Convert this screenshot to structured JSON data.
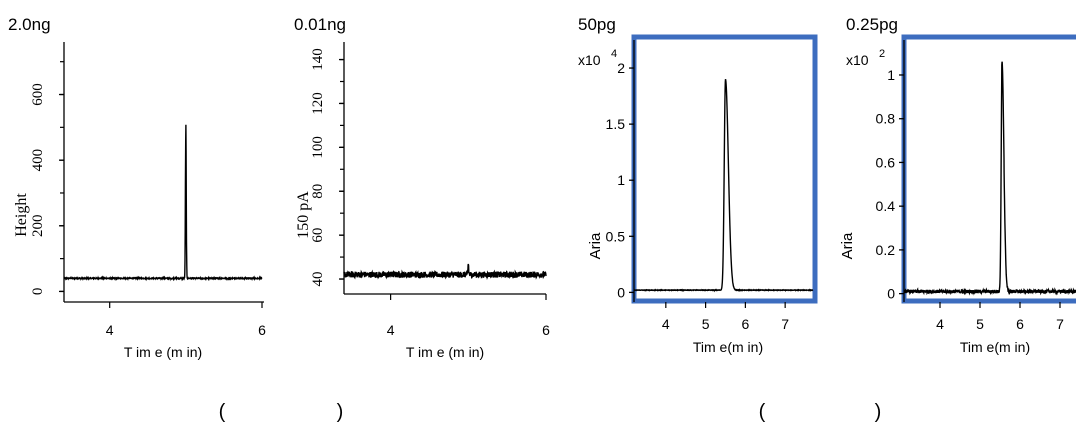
{
  "colors": {
    "line": "#000000",
    "frame": "#3d6dbf",
    "background": "#ffffff"
  },
  "captions": [
    "(",
    ")",
    "(",
    ")"
  ],
  "chart_data": [
    {
      "type": "line",
      "title": "2.0ng",
      "xlabel": "T im e (m in)",
      "ylabel": "Height",
      "xlim": [
        3.4,
        6.0
      ],
      "ylim": [
        -20,
        760
      ],
      "x_ticks": [
        4,
        6
      ],
      "y_ticks": [
        0,
        200,
        400,
        600
      ],
      "y_tick_labels": [
        "0",
        "200",
        "400",
        "600"
      ],
      "baseline": 40,
      "noise": 1.5,
      "peaks": [
        {
          "x": 5.0,
          "height": 508,
          "width": 0.012,
          "tail": 0.0
        }
      ]
    },
    {
      "type": "line",
      "title": "0.01ng",
      "xlabel": "T im e (m in)",
      "ylabel": "150 pA",
      "xlim": [
        3.4,
        6.0
      ],
      "ylim": [
        35,
        148
      ],
      "x_ticks": [
        4,
        6
      ],
      "y_ticks": [
        40,
        60,
        80,
        100,
        120,
        140
      ],
      "y_tick_labels": [
        "40",
        "60",
        "80",
        "100",
        "120",
        "140"
      ],
      "baseline": 42,
      "noise": 1.4,
      "peaks": [
        {
          "x": 5.0,
          "height": 47,
          "width": 0.01,
          "tail": 0.0
        }
      ]
    },
    {
      "type": "line",
      "title": "50pg",
      "multiplier": "x10",
      "exponent": "4",
      "xlabel": "Tim e(m in)",
      "ylabel": "Aria",
      "xlim": [
        3.2,
        7.7
      ],
      "ylim": [
        -0.05,
        2.25
      ],
      "x_ticks": [
        4,
        5,
        6,
        7
      ],
      "y_ticks": [
        0,
        0.5,
        1,
        1.5,
        2
      ],
      "y_tick_labels": [
        "0",
        "0.5",
        "1",
        "1.5",
        "2"
      ],
      "baseline": 0.02,
      "noise": 0.002,
      "peaks": [
        {
          "x": 5.5,
          "height": 1.9,
          "width": 0.07,
          "tail": 0.09
        }
      ]
    },
    {
      "type": "line",
      "title": "0.25pg",
      "multiplier": "x10",
      "exponent": "2",
      "xlabel": "Tim e(m in)",
      "ylabel": "Aria",
      "xlim": [
        3.1,
        7.4
      ],
      "ylim": [
        -0.02,
        1.16
      ],
      "x_ticks": [
        4,
        5,
        6,
        7
      ],
      "y_ticks": [
        0,
        0.2,
        0.4,
        0.6,
        0.8,
        1
      ],
      "y_tick_labels": [
        "0",
        "0.2",
        "0.4",
        "0.6",
        "0.8",
        "1"
      ],
      "baseline": 0.01,
      "noise": 0.008,
      "peaks": [
        {
          "x": 5.55,
          "height": 1.06,
          "width": 0.045,
          "tail": 0.06
        }
      ]
    }
  ]
}
